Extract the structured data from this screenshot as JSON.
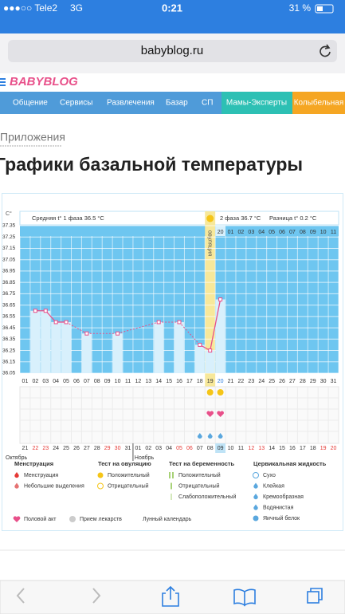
{
  "status_bar": {
    "carrier": "●●●○○ Tele2",
    "network": "3G",
    "time": "0:21",
    "battery": "31 %"
  },
  "browser": {
    "url": "babyblog.ru"
  },
  "site": {
    "logo": "BABYBLOG",
    "nav": [
      "Общение",
      "Сервисы",
      "Развлечения",
      "Базар",
      "СП",
      "Мамы-Эксперты",
      "Колыбельная"
    ]
  },
  "breadcrumb": "Приложения",
  "page_title": "Графики базальной температуры",
  "chart_data": {
    "type": "line",
    "unit_label": "C°",
    "phase1": "Средняя t° 1 фаза 36.5 °C",
    "phase2": "2 фаза 36.7 °C",
    "difference": "Разница t° 0.2 °C",
    "ovulation_label": "овуляция",
    "ovulation_day": "19",
    "current_day": "20",
    "categories": [
      "01",
      "02",
      "03",
      "04",
      "05",
      "06",
      "07",
      "08",
      "09",
      "10",
      "11",
      "12",
      "13",
      "14",
      "15",
      "16",
      "17",
      "18",
      "19",
      "20",
      "21",
      "22",
      "23",
      "24",
      "25",
      "26",
      "27",
      "28",
      "29",
      "30",
      "31"
    ],
    "values": [
      null,
      36.6,
      36.6,
      36.5,
      36.5,
      null,
      36.4,
      null,
      null,
      36.4,
      null,
      null,
      null,
      36.5,
      null,
      36.5,
      null,
      36.3,
      36.25,
      36.7,
      null,
      null,
      null,
      null,
      null,
      null,
      null,
      null,
      null,
      null,
      null
    ],
    "color": "#e8508a",
    "ylim": [
      36.05,
      37.35
    ],
    "yticks": [
      37.35,
      37.25,
      37.15,
      37.05,
      36.95,
      36.85,
      36.75,
      36.65,
      36.55,
      36.45,
      36.35,
      36.25,
      36.15,
      36.05
    ],
    "phase2_days": [
      "20",
      "01",
      "02",
      "03",
      "04",
      "05",
      "06",
      "07",
      "08",
      "09",
      "10",
      "11"
    ],
    "dates": [
      {
        "text": "21"
      },
      {
        "text": "22",
        "weekend": true
      },
      {
        "text": "23",
        "weekend": true
      },
      {
        "text": "24"
      },
      {
        "text": "25"
      },
      {
        "text": "26"
      },
      {
        "text": "27"
      },
      {
        "text": "28"
      },
      {
        "text": "29",
        "weekend": true
      },
      {
        "text": "30",
        "weekend": true
      },
      {
        "text": "31"
      },
      {
        "text": "01"
      },
      {
        "text": "02"
      },
      {
        "text": "03"
      },
      {
        "text": "04"
      },
      {
        "text": "05",
        "weekend": true
      },
      {
        "text": "06",
        "weekend": true
      },
      {
        "text": "07"
      },
      {
        "text": "08"
      },
      {
        "text": "09"
      },
      {
        "text": "10"
      },
      {
        "text": "11"
      },
      {
        "text": "12",
        "weekend": true
      },
      {
        "text": "13",
        "weekend": true
      },
      {
        "text": "14"
      },
      {
        "text": "15"
      },
      {
        "text": "16"
      },
      {
        "text": "17"
      },
      {
        "text": "18"
      },
      {
        "text": "19",
        "weekend": true
      },
      {
        "text": "20",
        "weekend": true
      }
    ],
    "months": [
      "Октябрь",
      "Ноябрь"
    ],
    "marks": {
      "ovulation_test": [
        "19",
        "20"
      ],
      "intercourse": [
        "19",
        "20"
      ],
      "cervical": [
        "18",
        "19",
        "20"
      ]
    }
  },
  "legend": {
    "columns": [
      {
        "title": "Менструация",
        "items": [
          "Менструация",
          "Небольшие выделения"
        ]
      },
      {
        "title": "Тест на овуляцию",
        "items": [
          "Положительный",
          "Отрицательный"
        ]
      },
      {
        "title": "Тест на беременность",
        "items": [
          "Положительный",
          "Отрицательный",
          "Слабоположительный"
        ]
      },
      {
        "title": "Цервикальная жидкость",
        "items": [
          "Сухо",
          "Клейкая",
          "Кремообразная",
          "Водянистая",
          "Яичный белок"
        ]
      }
    ],
    "extra": [
      "Половой акт",
      "Прием лекарств",
      "Лунный календарь"
    ]
  }
}
